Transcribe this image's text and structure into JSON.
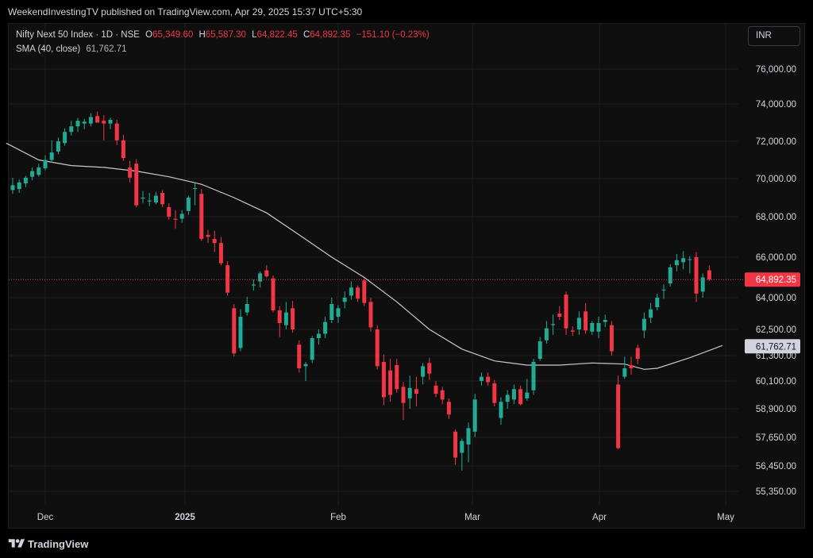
{
  "header": {
    "publish_text": "WeekendInvestingTV published on TradingView.com, Apr 29, 2025 15:37 UTC+5:30"
  },
  "legend": {
    "title": "Nifty Next 50 Index · 1D · NSE",
    "open_label": "O",
    "open_value": "65,349.60",
    "high_label": "H",
    "high_value": "65,587.30",
    "low_label": "L",
    "low_value": "64,822.45",
    "close_label": "C",
    "close_value": "64,892.35",
    "change": "−151.10 (−0.23%)",
    "sma_label": "SMA (40, close)",
    "sma_value": "61,762.71"
  },
  "currency": "INR",
  "footer": {
    "brand": "TradingView"
  },
  "colors": {
    "up": "#22ab94",
    "down": "#f23645",
    "sma": "#c9c9c9",
    "grid": "#1e1e1e",
    "axis_text": "#d1d4dc",
    "price_line": "#f23645",
    "sma_badge_bg": "#d1d4dc",
    "sma_badge_text": "#131722"
  },
  "chart_data": {
    "type": "candlestick",
    "title": "Nifty Next 50 Index · 1D · NSE",
    "x_axis_labels": [
      "Dec",
      "2025",
      "Feb",
      "Mar",
      "Apr",
      "May"
    ],
    "y_ticks": [
      {
        "value": 76000,
        "label": "76,000.00"
      },
      {
        "value": 74000,
        "label": "74,000.00"
      },
      {
        "value": 72000,
        "label": "72,000.00"
      },
      {
        "value": 70000,
        "label": "70,000.00"
      },
      {
        "value": 68000,
        "label": "68,000.00"
      },
      {
        "value": 66000,
        "label": "66,000.00"
      },
      {
        "value": 64000,
        "label": "64,000.00"
      },
      {
        "value": 62500,
        "label": "62,500.00"
      },
      {
        "value": 61300,
        "label": "61,300.00"
      },
      {
        "value": 60100,
        "label": "60,100.00"
      },
      {
        "value": 58900,
        "label": "58,900.00"
      },
      {
        "value": 57650,
        "label": "57,650.00"
      },
      {
        "value": 56450,
        "label": "56,450.00"
      },
      {
        "value": 55350,
        "label": "55,350.00"
      }
    ],
    "last_price": {
      "value": 64892.35,
      "label": "64,892.35"
    },
    "sma_last": {
      "value": 61762.71,
      "label": "61,762.71"
    },
    "candles": [
      {
        "o": 69400,
        "h": 70050,
        "l": 69200,
        "c": 69650
      },
      {
        "o": 69450,
        "h": 69950,
        "l": 69250,
        "c": 69800
      },
      {
        "o": 69750,
        "h": 70150,
        "l": 69550,
        "c": 70050
      },
      {
        "o": 70100,
        "h": 70600,
        "l": 69900,
        "c": 70400
      },
      {
        "o": 70200,
        "h": 70800,
        "l": 70100,
        "c": 70600
      },
      {
        "o": 70550,
        "h": 71250,
        "l": 70450,
        "c": 71000
      },
      {
        "o": 71000,
        "h": 72050,
        "l": 70850,
        "c": 71400
      },
      {
        "o": 71450,
        "h": 72200,
        "l": 71300,
        "c": 72000
      },
      {
        "o": 71900,
        "h": 72700,
        "l": 71750,
        "c": 72500
      },
      {
        "o": 72500,
        "h": 73100,
        "l": 72300,
        "c": 72800
      },
      {
        "o": 72800,
        "h": 73250,
        "l": 72500,
        "c": 73100
      },
      {
        "o": 72950,
        "h": 73200,
        "l": 72650,
        "c": 73050
      },
      {
        "o": 72950,
        "h": 73500,
        "l": 72800,
        "c": 73300
      },
      {
        "o": 73350,
        "h": 73600,
        "l": 73000,
        "c": 73000
      },
      {
        "o": 73100,
        "h": 73400,
        "l": 72050,
        "c": 72950
      },
      {
        "o": 72950,
        "h": 73250,
        "l": 72650,
        "c": 73150
      },
      {
        "o": 72950,
        "h": 73150,
        "l": 71800,
        "c": 72050
      },
      {
        "o": 72050,
        "h": 72350,
        "l": 70950,
        "c": 71100
      },
      {
        "o": 70600,
        "h": 70950,
        "l": 69800,
        "c": 70050
      },
      {
        "o": 70800,
        "h": 71050,
        "l": 68500,
        "c": 68600
      },
      {
        "o": 68950,
        "h": 69350,
        "l": 68700,
        "c": 69000
      },
      {
        "o": 68800,
        "h": 69250,
        "l": 68550,
        "c": 68850
      },
      {
        "o": 68750,
        "h": 69300,
        "l": 68650,
        "c": 69100
      },
      {
        "o": 69250,
        "h": 69400,
        "l": 68500,
        "c": 68650
      },
      {
        "o": 68500,
        "h": 68700,
        "l": 67850,
        "c": 68000
      },
      {
        "o": 67900,
        "h": 68350,
        "l": 67400,
        "c": 67850
      },
      {
        "o": 67900,
        "h": 68350,
        "l": 67700,
        "c": 68150
      },
      {
        "o": 68300,
        "h": 69100,
        "l": 68100,
        "c": 69000
      },
      {
        "o": 69500,
        "h": 69800,
        "l": 68600,
        "c": 69500
      },
      {
        "o": 69200,
        "h": 69450,
        "l": 66800,
        "c": 66900
      },
      {
        "o": 67100,
        "h": 67350,
        "l": 66700,
        "c": 67000
      },
      {
        "o": 66900,
        "h": 67300,
        "l": 66250,
        "c": 66700
      },
      {
        "o": 66700,
        "h": 67000,
        "l": 65600,
        "c": 65700
      },
      {
        "o": 65600,
        "h": 65800,
        "l": 64100,
        "c": 64250
      },
      {
        "o": 63500,
        "h": 63700,
        "l": 61250,
        "c": 61400
      },
      {
        "o": 61650,
        "h": 63450,
        "l": 61500,
        "c": 63100
      },
      {
        "o": 63300,
        "h": 64050,
        "l": 63150,
        "c": 63700
      },
      {
        "o": 64600,
        "h": 64900,
        "l": 64350,
        "c": 64650
      },
      {
        "o": 64800,
        "h": 65300,
        "l": 64500,
        "c": 65200
      },
      {
        "o": 65350,
        "h": 65600,
        "l": 65000,
        "c": 65050
      },
      {
        "o": 64950,
        "h": 65100,
        "l": 63300,
        "c": 63400
      },
      {
        "o": 63400,
        "h": 63600,
        "l": 62150,
        "c": 62800
      },
      {
        "o": 62700,
        "h": 63800,
        "l": 62500,
        "c": 63300
      },
      {
        "o": 63500,
        "h": 63850,
        "l": 62350,
        "c": 62500
      },
      {
        "o": 61800,
        "h": 62000,
        "l": 60500,
        "c": 60700
      },
      {
        "o": 60800,
        "h": 61000,
        "l": 60100,
        "c": 60900
      },
      {
        "o": 61100,
        "h": 62200,
        "l": 60950,
        "c": 62100
      },
      {
        "o": 62100,
        "h": 62500,
        "l": 61800,
        "c": 62300
      },
      {
        "o": 62300,
        "h": 63100,
        "l": 62100,
        "c": 62850
      },
      {
        "o": 62950,
        "h": 64000,
        "l": 62800,
        "c": 63700
      },
      {
        "o": 63100,
        "h": 63650,
        "l": 62800,
        "c": 63500
      },
      {
        "o": 63800,
        "h": 64300,
        "l": 63500,
        "c": 64000
      },
      {
        "o": 64100,
        "h": 64800,
        "l": 63900,
        "c": 64500
      },
      {
        "o": 64500,
        "h": 64600,
        "l": 63800,
        "c": 63950
      },
      {
        "o": 64850,
        "h": 64950,
        "l": 63600,
        "c": 63750
      },
      {
        "o": 63800,
        "h": 64000,
        "l": 62400,
        "c": 62600
      },
      {
        "o": 62500,
        "h": 62700,
        "l": 60650,
        "c": 60800
      },
      {
        "o": 61000,
        "h": 61350,
        "l": 59050,
        "c": 59400
      },
      {
        "o": 60600,
        "h": 61150,
        "l": 59200,
        "c": 59500
      },
      {
        "o": 60850,
        "h": 61150,
        "l": 59600,
        "c": 59750
      },
      {
        "o": 59850,
        "h": 60050,
        "l": 58400,
        "c": 59150
      },
      {
        "o": 59350,
        "h": 60350,
        "l": 58900,
        "c": 59800
      },
      {
        "o": 59750,
        "h": 60300,
        "l": 59000,
        "c": 59550
      },
      {
        "o": 60300,
        "h": 60950,
        "l": 59950,
        "c": 60800
      },
      {
        "o": 60950,
        "h": 61200,
        "l": 60150,
        "c": 60450
      },
      {
        "o": 59900,
        "h": 60100,
        "l": 59400,
        "c": 59550
      },
      {
        "o": 59700,
        "h": 59850,
        "l": 59100,
        "c": 59300
      },
      {
        "o": 59200,
        "h": 59350,
        "l": 58450,
        "c": 58650
      },
      {
        "o": 57900,
        "h": 58000,
        "l": 56500,
        "c": 56800
      },
      {
        "o": 57000,
        "h": 57600,
        "l": 56250,
        "c": 57500
      },
      {
        "o": 57350,
        "h": 58300,
        "l": 56600,
        "c": 58050
      },
      {
        "o": 57900,
        "h": 59550,
        "l": 57650,
        "c": 59300
      },
      {
        "o": 60100,
        "h": 60500,
        "l": 59900,
        "c": 60300
      },
      {
        "o": 60300,
        "h": 60500,
        "l": 59900,
        "c": 60050
      },
      {
        "o": 60000,
        "h": 60150,
        "l": 59000,
        "c": 59150
      },
      {
        "o": 58500,
        "h": 59400,
        "l": 58200,
        "c": 59200
      },
      {
        "o": 59200,
        "h": 59700,
        "l": 58900,
        "c": 59500
      },
      {
        "o": 59300,
        "h": 59950,
        "l": 59100,
        "c": 59750
      },
      {
        "o": 59750,
        "h": 59900,
        "l": 59050,
        "c": 59100
      },
      {
        "o": 59350,
        "h": 60200,
        "l": 59250,
        "c": 59600
      },
      {
        "o": 59700,
        "h": 61150,
        "l": 59500,
        "c": 61000
      },
      {
        "o": 61150,
        "h": 62150,
        "l": 61050,
        "c": 61950
      },
      {
        "o": 62000,
        "h": 62900,
        "l": 61850,
        "c": 62550
      },
      {
        "o": 62700,
        "h": 63200,
        "l": 62250,
        "c": 62750
      },
      {
        "o": 63250,
        "h": 63600,
        "l": 62950,
        "c": 63100
      },
      {
        "o": 64150,
        "h": 64300,
        "l": 62250,
        "c": 62550
      },
      {
        "o": 62450,
        "h": 62650,
        "l": 62200,
        "c": 62400
      },
      {
        "o": 62500,
        "h": 63350,
        "l": 62250,
        "c": 63050
      },
      {
        "o": 63350,
        "h": 63750,
        "l": 62300,
        "c": 62450
      },
      {
        "o": 62400,
        "h": 62900,
        "l": 62250,
        "c": 62800
      },
      {
        "o": 62400,
        "h": 63100,
        "l": 62100,
        "c": 62800
      },
      {
        "o": 62850,
        "h": 63200,
        "l": 62600,
        "c": 62950
      },
      {
        "o": 62700,
        "h": 62900,
        "l": 61300,
        "c": 61500
      },
      {
        "o": 59950,
        "h": 60350,
        "l": 57150,
        "c": 57200
      },
      {
        "o": 60300,
        "h": 61250,
        "l": 60200,
        "c": 60700
      },
      {
        "o": 60850,
        "h": 61250,
        "l": 60400,
        "c": 60700
      },
      {
        "o": 61650,
        "h": 61800,
        "l": 60900,
        "c": 61150
      },
      {
        "o": 62450,
        "h": 63300,
        "l": 62100,
        "c": 63000
      },
      {
        "o": 63050,
        "h": 63750,
        "l": 62800,
        "c": 63450
      },
      {
        "o": 63550,
        "h": 64200,
        "l": 63400,
        "c": 64000
      },
      {
        "o": 64400,
        "h": 64650,
        "l": 63950,
        "c": 64400
      },
      {
        "o": 64700,
        "h": 65650,
        "l": 64550,
        "c": 65500
      },
      {
        "o": 65600,
        "h": 66150,
        "l": 65300,
        "c": 65850
      },
      {
        "o": 65750,
        "h": 66300,
        "l": 65400,
        "c": 65950
      },
      {
        "o": 65900,
        "h": 66050,
        "l": 65200,
        "c": 65900
      },
      {
        "o": 66000,
        "h": 66250,
        "l": 63800,
        "c": 64200
      },
      {
        "o": 64300,
        "h": 65200,
        "l": 64000,
        "c": 65000
      },
      {
        "o": 65349.6,
        "h": 65587.3,
        "l": 64822.45,
        "c": 64892.35
      }
    ],
    "sma": [
      {
        "i": -1,
        "v": 71900
      },
      {
        "i": 4,
        "v": 71000
      },
      {
        "i": 9,
        "v": 70700
      },
      {
        "i": 14,
        "v": 70600
      },
      {
        "i": 19,
        "v": 70400
      },
      {
        "i": 24,
        "v": 70100
      },
      {
        "i": 29,
        "v": 69700
      },
      {
        "i": 34,
        "v": 69000
      },
      {
        "i": 39,
        "v": 68200
      },
      {
        "i": 44,
        "v": 67100
      },
      {
        "i": 49,
        "v": 66000
      },
      {
        "i": 54,
        "v": 65000
      },
      {
        "i": 59,
        "v": 63800
      },
      {
        "i": 64,
        "v": 62500
      },
      {
        "i": 69,
        "v": 61600
      },
      {
        "i": 74,
        "v": 61050
      },
      {
        "i": 79,
        "v": 60850
      },
      {
        "i": 84,
        "v": 60850
      },
      {
        "i": 89,
        "v": 60950
      },
      {
        "i": 94,
        "v": 60900
      },
      {
        "i": 97,
        "v": 60650
      },
      {
        "i": 99,
        "v": 60700
      },
      {
        "i": 104,
        "v": 61200
      },
      {
        "i": 109,
        "v": 61762.71
      }
    ]
  }
}
